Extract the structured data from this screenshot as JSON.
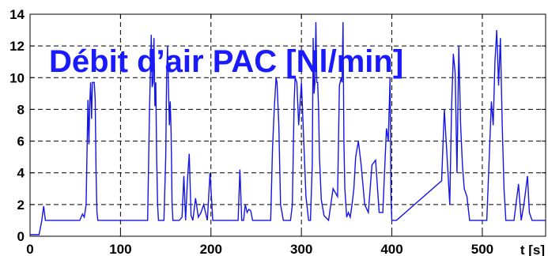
{
  "chart_data": {
    "type": "line",
    "title": "Débit d’air PAC [Nl/min]",
    "xlabel": "t [s]",
    "ylabel": "",
    "xlim": [
      0,
      570
    ],
    "ylim": [
      0,
      14
    ],
    "x_ticks": [
      0,
      100,
      200,
      300,
      400,
      500
    ],
    "y_ticks": [
      0,
      2,
      4,
      6,
      8,
      10,
      12,
      14
    ],
    "grid": true,
    "line_color": "#1515e6",
    "title_color": "#1a1aff",
    "series": [
      {
        "x": [
          0,
          10,
          13,
          15,
          17,
          20,
          55,
          58,
          60,
          62,
          64,
          65,
          66,
          67,
          68,
          69,
          70,
          71,
          72,
          73,
          74,
          75,
          76,
          78,
          80,
          130,
          132,
          134,
          135,
          136,
          137,
          138,
          139,
          140,
          141,
          142,
          143,
          145,
          148,
          150,
          151,
          152,
          153,
          154,
          155,
          156,
          157,
          158,
          160,
          165,
          168,
          170,
          172,
          174,
          176,
          178,
          180,
          183,
          186,
          189,
          192,
          196,
          199,
          202,
          225,
          228,
          230,
          232,
          234,
          236,
          238,
          240,
          242,
          244,
          246,
          250,
          255,
          258,
          262,
          266,
          268,
          270,
          272,
          273,
          275,
          277,
          280,
          285,
          288,
          290,
          292,
          293,
          295,
          297,
          300,
          305,
          308,
          310,
          312,
          313,
          314,
          315,
          316,
          317,
          318,
          319,
          320,
          322,
          325,
          330,
          335,
          340,
          342,
          344,
          345,
          346,
          347,
          348,
          350,
          352,
          354,
          356,
          358,
          360,
          363,
          366,
          370,
          374,
          378,
          382,
          386,
          390,
          394,
          396,
          398,
          399,
          400,
          402,
          405,
          455,
          458,
          460,
          462,
          464,
          466,
          468,
          470,
          472,
          474,
          476,
          478,
          480,
          483,
          486,
          490,
          505,
          508,
          510,
          512,
          514,
          516,
          518,
          520,
          522,
          524,
          526,
          530,
          535,
          540,
          543,
          546,
          550,
          552,
          555,
          565,
          570
        ],
        "y": [
          0.1,
          0.1,
          1,
          1.9,
          1,
          1,
          1,
          1.4,
          1.2,
          2,
          8.6,
          5.8,
          8.4,
          9.7,
          7.4,
          9.7,
          9.7,
          9.7,
          8.6,
          4,
          1.5,
          1,
          1,
          1,
          1,
          1,
          7.8,
          12.7,
          9.4,
          9.7,
          12.5,
          8.2,
          9.7,
          5,
          2,
          1,
          1,
          1,
          1,
          5,
          10,
          12,
          9.5,
          7,
          8.5,
          6.5,
          2,
          1,
          1,
          1,
          1.2,
          3.8,
          1,
          3.5,
          5.2,
          1.3,
          1,
          2.4,
          1.2,
          1.5,
          2,
          1,
          4,
          1,
          1,
          1,
          1,
          4.2,
          1,
          1,
          2,
          1.5,
          1.7,
          1.6,
          1,
          1,
          1,
          1,
          1,
          1,
          5.5,
          8,
          10,
          9.7,
          7,
          2,
          1,
          1,
          1,
          2,
          8.5,
          10,
          9.7,
          7,
          9.7,
          2.5,
          1,
          1,
          4.5,
          12.5,
          9,
          9.7,
          13.5,
          9.7,
          9.7,
          8,
          5,
          2.3,
          1.3,
          1,
          3,
          2.5,
          9.5,
          10,
          9.7,
          13.5,
          6,
          3,
          1.2,
          1.5,
          1.2,
          2,
          3,
          5,
          6,
          4.5,
          2,
          1.5,
          4.5,
          4.8,
          1.5,
          1.5,
          6.8,
          6,
          10,
          2.5,
          1,
          1,
          1,
          3.5,
          8,
          6,
          4,
          2,
          8,
          11.5,
          10.3,
          4,
          12,
          7,
          4.5,
          3,
          2.5,
          1,
          1,
          1,
          5.5,
          8.5,
          7,
          11,
          13,
          9.5,
          12.5,
          7,
          3,
          1,
          1,
          1,
          3.3,
          1,
          2,
          3.8,
          1.5,
          1,
          1,
          1
        ]
      }
    ]
  }
}
